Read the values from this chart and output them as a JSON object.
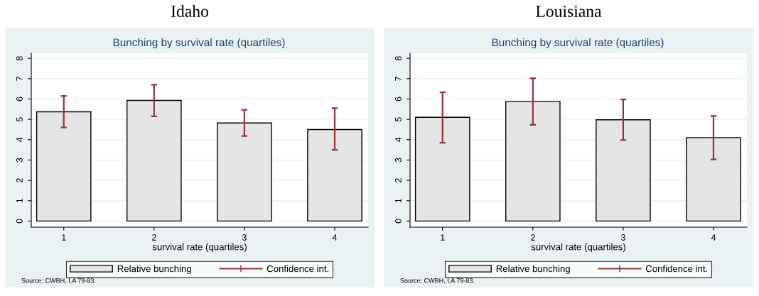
{
  "chart_data": [
    {
      "type": "bar",
      "title": "Idaho",
      "subtitle": "Bunching by survival rate (quartiles)",
      "xlabel": "survival rate (quartiles)",
      "categories": [
        "1",
        "2",
        "3",
        "4"
      ],
      "series": [
        {
          "name": "Relative bunching",
          "color": "#e5e5e5",
          "values": [
            5.37,
            5.93,
            4.82,
            4.5
          ],
          "errors": [
            [
              4.6,
              6.15
            ],
            [
              5.15,
              6.7
            ],
            [
              4.18,
              5.47
            ],
            [
              3.5,
              5.55
            ]
          ]
        }
      ],
      "ylim": [
        -0.3,
        8.25
      ],
      "yticks": [
        0,
        1,
        2,
        3,
        4,
        5,
        6,
        7,
        8
      ],
      "grid": "y",
      "legend": "bottom",
      "annotations": [
        "Confidence int.",
        "Source: CWBH, LA 79-83."
      ]
    },
    {
      "type": "bar",
      "title": "Louisiana",
      "subtitle": "Bunching by survival rate (quartiles)",
      "xlabel": "survival rate (quartiles)",
      "categories": [
        "1",
        "2",
        "3",
        "4"
      ],
      "series": [
        {
          "name": "Relative bunching",
          "color": "#e5e5e5",
          "values": [
            5.1,
            5.88,
            4.98,
            4.1
          ],
          "errors": [
            [
              3.85,
              6.33
            ],
            [
              4.73,
              7.02
            ],
            [
              3.98,
              5.98
            ],
            [
              3.03,
              5.17
            ]
          ]
        }
      ],
      "ylim": [
        -0.3,
        8.25
      ],
      "yticks": [
        0,
        1,
        2,
        3,
        4,
        5,
        6,
        7,
        8
      ],
      "grid": "y",
      "legend": "bottom",
      "annotations": [
        "Confidence int.",
        "Source: CWBH, LA 79-83."
      ]
    }
  ]
}
